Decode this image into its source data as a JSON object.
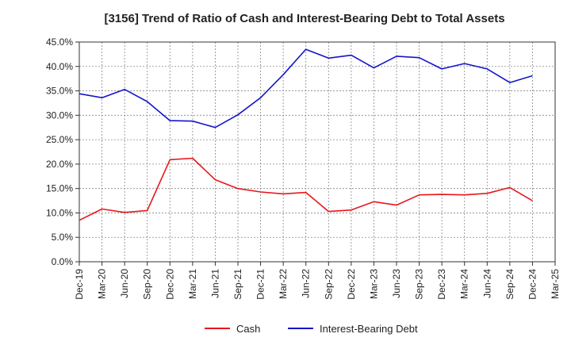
{
  "chart_data": {
    "type": "line",
    "title": "[3156]  Trend of Ratio of Cash and Interest-Bearing Debt to Total Assets",
    "xlabel": "",
    "ylabel": "",
    "ylim": [
      0,
      45
    ],
    "yticks": [
      "0.0%",
      "5.0%",
      "10.0%",
      "15.0%",
      "20.0%",
      "25.0%",
      "30.0%",
      "35.0%",
      "40.0%",
      "45.0%"
    ],
    "xticks": [
      "Dec-19",
      "Mar-20",
      "Jun-20",
      "Sep-20",
      "Dec-20",
      "Mar-21",
      "Jun-21",
      "Sep-21",
      "Dec-21",
      "Mar-22",
      "Jun-22",
      "Sep-22",
      "Dec-22",
      "Mar-23",
      "Jun-23",
      "Sep-23",
      "Dec-23",
      "Mar-24",
      "Jun-24",
      "Sep-24",
      "Dec-24",
      "Mar-25"
    ],
    "grid": true,
    "legend_position": "bottom",
    "series": [
      {
        "name": "Cash",
        "color": "#e8161b",
        "values": [
          8.5,
          10.8,
          10.1,
          10.5,
          20.9,
          21.2,
          16.8,
          15.0,
          14.3,
          13.9,
          14.2,
          10.3,
          10.6,
          12.3,
          11.6,
          13.7,
          13.8,
          13.7,
          14.0,
          15.2,
          12.5,
          null
        ]
      },
      {
        "name": "Interest-Bearing Debt",
        "color": "#1414cc",
        "values": [
          34.4,
          33.6,
          35.3,
          32.8,
          28.9,
          28.8,
          27.5,
          30.1,
          33.6,
          38.3,
          43.5,
          41.7,
          42.3,
          39.7,
          42.1,
          41.8,
          39.5,
          40.6,
          39.5,
          36.7,
          38.1,
          null
        ]
      }
    ]
  }
}
